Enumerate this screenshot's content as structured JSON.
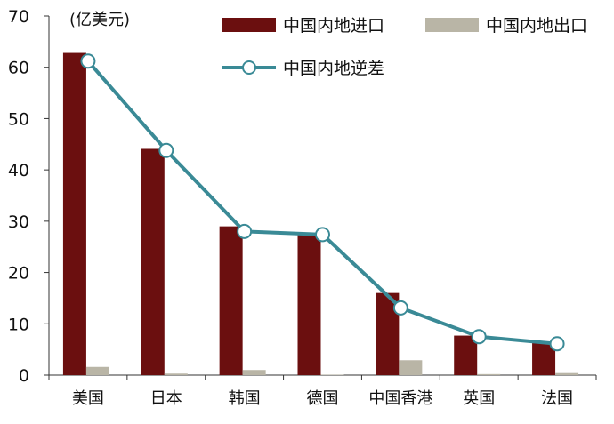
{
  "chart_data": {
    "type": "bar",
    "unit_label": "(亿美元)",
    "categories": [
      "美国",
      "日本",
      "韩国",
      "德国",
      "中国香港",
      "英国",
      "法国"
    ],
    "series": [
      {
        "name": "中国内地进口",
        "kind": "bar",
        "color": "#6b0f0f",
        "values": [
          62.8,
          44.1,
          29.0,
          27.5,
          16.0,
          7.7,
          6.4
        ]
      },
      {
        "name": "中国内地出口",
        "kind": "bar",
        "color": "#b9b5a6",
        "values": [
          1.6,
          0.3,
          1.0,
          0.1,
          2.9,
          0.2,
          0.4
        ]
      },
      {
        "name": "中国内地逆差",
        "kind": "line",
        "color": "#3a8a96",
        "values": [
          61.2,
          43.8,
          28.0,
          27.4,
          13.1,
          7.5,
          6.1
        ]
      }
    ],
    "ylim": [
      0,
      70
    ],
    "yticks": [
      0,
      10,
      20,
      30,
      40,
      50,
      60,
      70
    ],
    "grid": false,
    "legend_position": "top-right"
  }
}
